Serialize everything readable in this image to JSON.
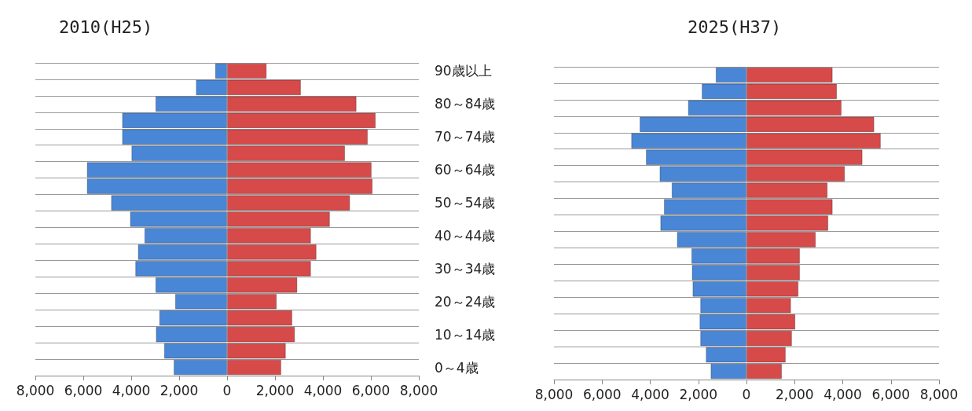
{
  "chart_data": [
    {
      "type": "bar",
      "orientation": "horizontal",
      "title": "2010(H25)",
      "categories": [
        "90歳以上",
        null,
        "80～84歳",
        null,
        "70～74歳",
        null,
        "60～64歳",
        null,
        "50～54歳",
        null,
        "40～44歳",
        null,
        "30～34歳",
        null,
        "20～24歳",
        null,
        "10～14歳",
        null,
        "0～4歳"
      ],
      "series": [
        {
          "color": "#4a86d6",
          "values": [
            -500,
            -1300,
            -2990,
            -4380,
            -4380,
            -3990,
            -5850,
            -5850,
            -4840,
            -4050,
            -3450,
            -3720,
            -3830,
            -2990,
            -2170,
            -2830,
            -2970,
            -2630,
            -2230
          ]
        },
        {
          "color": "#d64a4a",
          "values": [
            1650,
            3080,
            5400,
            6200,
            5870,
            4920,
            6030,
            6070,
            5130,
            4290,
            3500,
            3730,
            3500,
            2930,
            2070,
            2720,
            2830,
            2450,
            2260
          ]
        }
      ],
      "xlim": [
        -8000,
        8000
      ],
      "xticks": [
        {
          "value": -8000,
          "label": "8,000"
        },
        {
          "value": -6000,
          "label": "6,000"
        },
        {
          "value": -4000,
          "label": "4,000"
        },
        {
          "value": -2000,
          "label": "2,000"
        },
        0,
        {
          "value": 2000,
          "label": "2,000"
        },
        {
          "value": 4000,
          "label": "4,000"
        },
        {
          "value": 6000,
          "label": "6,000"
        },
        {
          "value": 8000,
          "label": "8,000"
        }
      ],
      "grid": "y",
      "stacked": true
    },
    {
      "type": "bar",
      "orientation": "horizontal",
      "title": "2025(H37)",
      "categories": [
        null,
        null,
        null,
        null,
        null,
        null,
        null,
        null,
        null,
        null,
        null,
        null,
        null,
        null,
        null,
        null,
        null,
        null,
        null
      ],
      "series": [
        {
          "color": "#4a86d6",
          "values": [
            -1280,
            -1860,
            -2430,
            -4440,
            -4790,
            -4180,
            -3610,
            -3110,
            -3430,
            -3580,
            -2890,
            -2290,
            -2270,
            -2240,
            -1920,
            -1950,
            -1920,
            -1690,
            -1490
          ]
        },
        {
          "color": "#d64a4a",
          "values": [
            3580,
            3760,
            3950,
            5310,
            5580,
            4820,
            4090,
            3370,
            3580,
            3400,
            2880,
            2220,
            2220,
            2160,
            1850,
            2030,
            1890,
            1630,
            1470
          ]
        }
      ],
      "xlim": [
        -8000,
        8000
      ],
      "xticks": [
        {
          "value": -8000,
          "label": "8,000"
        },
        {
          "value": -6000,
          "label": "6,000"
        },
        {
          "value": -4000,
          "label": "4,000"
        },
        {
          "value": -2000,
          "label": "2,000"
        },
        0,
        {
          "value": 2000,
          "label": "2,000"
        },
        {
          "value": 4000,
          "label": "4,000"
        },
        {
          "value": 6000,
          "label": "6,000"
        },
        {
          "value": 8000,
          "label": "8,000"
        }
      ],
      "grid": "y",
      "stacked": true
    }
  ]
}
